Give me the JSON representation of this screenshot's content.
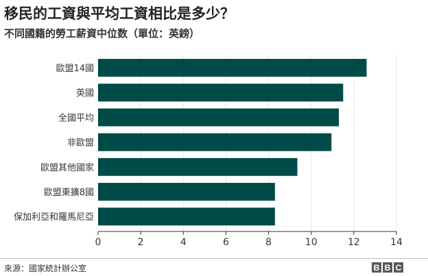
{
  "header": {
    "title": "移民的工資與平均工資相比是多少？",
    "subtitle": "不同國籍的勞工薪資中位数（單位：英鎊）"
  },
  "footer": {
    "source": "來源：國家統計辦公室",
    "logo_letters": [
      "B",
      "B",
      "C"
    ]
  },
  "colors": {
    "bar": "#004b47",
    "axis": "#333333",
    "grid": "#e6e6e6"
  },
  "chart_data": {
    "type": "bar",
    "orientation": "horizontal",
    "categories": [
      "歐盟14國",
      "英國",
      "全國平均",
      "非歐盟",
      "歐盟其他國家",
      "歐盟東擴8國",
      "保加利亞和羅馬尼亞"
    ],
    "values": [
      12.6,
      11.5,
      11.3,
      10.95,
      9.35,
      8.3,
      8.3
    ],
    "xlim": [
      0,
      14
    ],
    "xticks": [
      0,
      2,
      4,
      6,
      8,
      10,
      12,
      14
    ],
    "title": "移民的工資與平均工資相比是多少？",
    "subtitle": "不同國籍的勞工薪資中位数（單位：英鎊）",
    "xlabel": "",
    "ylabel": "",
    "grid": true
  }
}
